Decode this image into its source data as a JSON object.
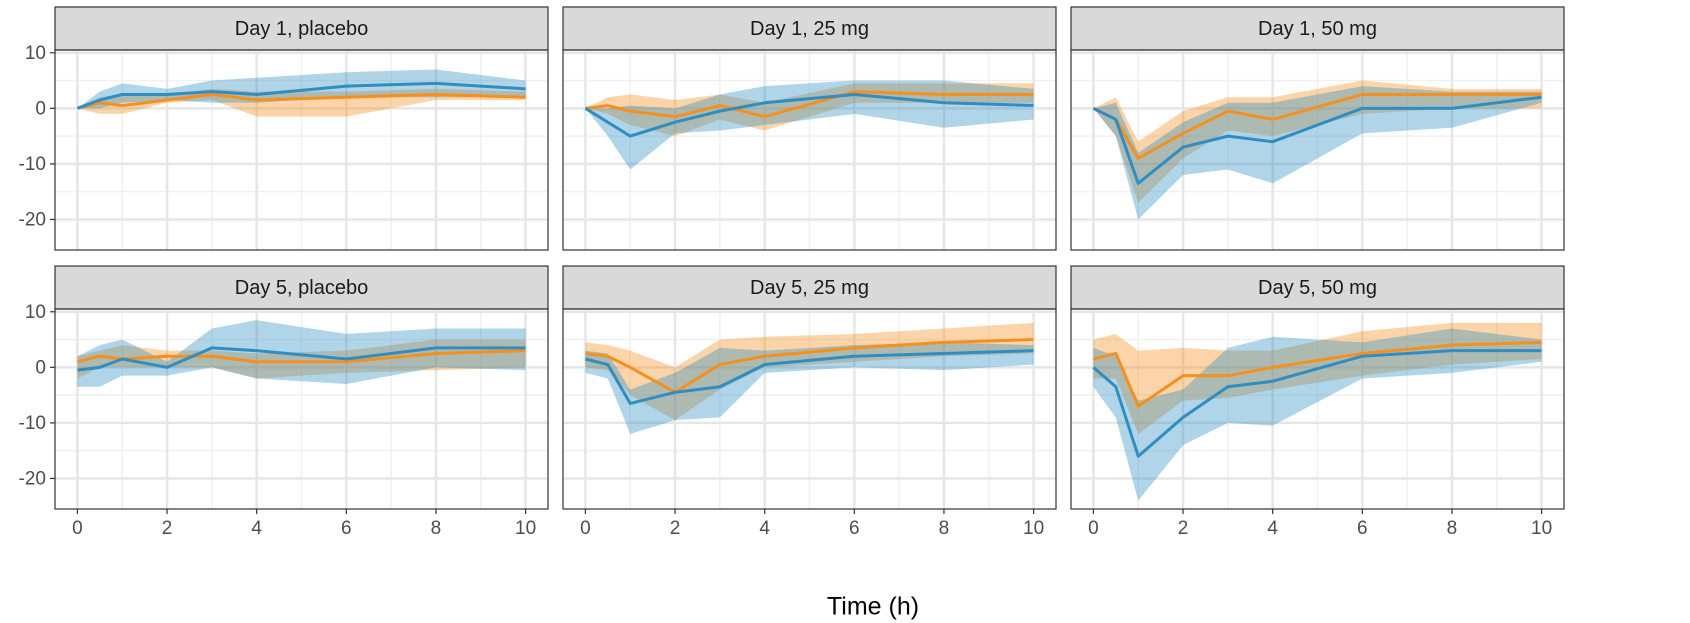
{
  "xlabel": "Time (h)",
  "chart_data": [
    {
      "type": "line",
      "title": "Day 1, placebo",
      "x": [
        0,
        0.5,
        1,
        2,
        3,
        4,
        6,
        8,
        10
      ],
      "xlim": [
        -0.5,
        10.5
      ],
      "ylim": [
        -25.5,
        10.5
      ],
      "xticks": [
        0,
        2,
        4,
        6,
        8,
        10
      ],
      "yticks": [
        -20,
        -10,
        0,
        10
      ],
      "grid": true,
      "series": [
        {
          "color": "#f5901e",
          "values": [
            0,
            1,
            0.5,
            1.5,
            2.5,
            1.5,
            2,
            2.5,
            2
          ],
          "lower": [
            0,
            -1,
            -1,
            1,
            1.5,
            -1.5,
            -1.5,
            1.5,
            1.5
          ],
          "upper": [
            0,
            2,
            2.5,
            2.5,
            3.5,
            3,
            3,
            3.5,
            3
          ]
        },
        {
          "color": "#2f8dc2",
          "values": [
            0,
            1.5,
            2.5,
            2.5,
            3,
            2.5,
            4,
            4.5,
            3.5
          ],
          "lower": [
            0,
            0,
            1,
            1.5,
            1,
            1,
            2,
            2,
            2
          ],
          "upper": [
            0,
            3,
            4.5,
            3.5,
            5,
            5.5,
            6.5,
            7,
            5
          ]
        }
      ]
    },
    {
      "type": "line",
      "title": "Day 1, 25 mg",
      "x": [
        0,
        0.5,
        1,
        2,
        3,
        4,
        6,
        8,
        10
      ],
      "xlim": [
        -0.5,
        10.5
      ],
      "ylim": [
        -25.5,
        10.5
      ],
      "xticks": [
        0,
        2,
        4,
        6,
        8,
        10
      ],
      "yticks": [
        -20,
        -10,
        0,
        10
      ],
      "grid": true,
      "series": [
        {
          "color": "#f5901e",
          "values": [
            0,
            0.5,
            -0.5,
            -1.5,
            0.5,
            -1.5,
            3,
            2.5,
            2.5
          ],
          "lower": [
            0,
            -1,
            -3,
            -5,
            -2,
            -4,
            1,
            1,
            1
          ],
          "upper": [
            0,
            2,
            2.5,
            1.5,
            2.5,
            1,
            4.5,
            4.5,
            4.5
          ]
        },
        {
          "color": "#2f8dc2",
          "values": [
            0,
            -2.5,
            -5,
            -2.5,
            -0.5,
            1,
            2.5,
            1,
            0.5
          ],
          "lower": [
            0,
            -5,
            -11,
            -4.5,
            -4,
            -3,
            -1,
            -3.5,
            -2
          ],
          "upper": [
            0,
            0,
            0.5,
            0,
            2.5,
            4,
            5,
            5,
            3.5
          ]
        }
      ]
    },
    {
      "type": "line",
      "title": "Day 1, 50 mg",
      "x": [
        0,
        0.5,
        1,
        2,
        3,
        4,
        6,
        8,
        10
      ],
      "xlim": [
        -0.5,
        10.5
      ],
      "ylim": [
        -25.5,
        10.5
      ],
      "xticks": [
        0,
        2,
        4,
        6,
        8,
        10
      ],
      "yticks": [
        -20,
        -10,
        0,
        10
      ],
      "grid": true,
      "series": [
        {
          "color": "#f5901e",
          "values": [
            0,
            -2,
            -9,
            -4.5,
            -0.5,
            -2,
            2.5,
            2.5,
            2.5
          ],
          "lower": [
            0,
            -5,
            -17,
            -9,
            -4,
            -5,
            -1,
            0,
            0
          ],
          "upper": [
            0,
            2,
            -6,
            -0.5,
            2,
            2,
            5,
            3.5,
            3.5
          ]
        },
        {
          "color": "#2f8dc2",
          "values": [
            0,
            -2,
            -13.5,
            -7,
            -5,
            -6,
            0,
            0,
            2
          ],
          "lower": [
            0,
            -5,
            -20,
            -12,
            -11,
            -13.5,
            -4.5,
            -3.5,
            1
          ],
          "upper": [
            0,
            1,
            -8,
            -2.5,
            1,
            1,
            4,
            3,
            3
          ]
        }
      ]
    },
    {
      "type": "line",
      "title": "Day 5, placebo",
      "x": [
        0,
        0.5,
        1,
        2,
        3,
        4,
        6,
        8,
        10
      ],
      "xlim": [
        -0.5,
        10.5
      ],
      "ylim": [
        -25.5,
        10.5
      ],
      "xticks": [
        0,
        2,
        4,
        6,
        8,
        10
      ],
      "yticks": [
        -20,
        -10,
        0,
        10
      ],
      "grid": true,
      "series": [
        {
          "color": "#f5901e",
          "values": [
            1,
            2,
            1.5,
            2,
            2,
            1,
            1,
            2.5,
            3
          ],
          "lower": [
            -2,
            0,
            0,
            0,
            0,
            -2,
            -1,
            -0.5,
            0
          ],
          "upper": [
            2,
            3,
            4,
            3,
            3,
            2.5,
            3,
            5,
            5
          ]
        },
        {
          "color": "#2f8dc2",
          "values": [
            -0.5,
            0,
            1.5,
            0,
            3.5,
            3,
            1.5,
            3.5,
            3.5
          ],
          "lower": [
            -3.5,
            -3.5,
            -1.5,
            -1.5,
            0,
            -2,
            -3,
            0,
            -0.5
          ],
          "upper": [
            2,
            4,
            5,
            1,
            7,
            8.5,
            6,
            7,
            7
          ]
        }
      ]
    },
    {
      "type": "line",
      "title": "Day 5, 25 mg",
      "x": [
        0,
        0.5,
        1,
        2,
        3,
        4,
        6,
        8,
        10
      ],
      "xlim": [
        -0.5,
        10.5
      ],
      "ylim": [
        -25.5,
        10.5
      ],
      "xticks": [
        0,
        2,
        4,
        6,
        8,
        10
      ],
      "yticks": [
        -20,
        -10,
        0,
        10
      ],
      "grid": true,
      "series": [
        {
          "color": "#f5901e",
          "values": [
            2.5,
            2,
            0,
            -4.5,
            0.5,
            2,
            3.5,
            4.5,
            5
          ],
          "lower": [
            0,
            -0.5,
            -5,
            -9.5,
            -4,
            0,
            1,
            2,
            2.5
          ],
          "upper": [
            4.5,
            4,
            3,
            0,
            5,
            5.5,
            6,
            7,
            8
          ]
        },
        {
          "color": "#2f8dc2",
          "values": [
            1.5,
            0.5,
            -6.5,
            -4.5,
            -3.5,
            0.5,
            2,
            2.5,
            3
          ],
          "lower": [
            -1,
            -2,
            -12,
            -9.5,
            -9,
            -1,
            0,
            -0.5,
            0.5
          ],
          "upper": [
            3,
            2.5,
            -4,
            -1,
            3.5,
            3,
            4,
            4.5,
            4
          ]
        }
      ]
    },
    {
      "type": "line",
      "title": "Day 5, 50 mg",
      "x": [
        0,
        0.5,
        1,
        2,
        3,
        4,
        6,
        8,
        10
      ],
      "xlim": [
        -0.5,
        10.5
      ],
      "ylim": [
        -25.5,
        10.5
      ],
      "xticks": [
        0,
        2,
        4,
        6,
        8,
        10
      ],
      "yticks": [
        -20,
        -10,
        0,
        10
      ],
      "grid": true,
      "series": [
        {
          "color": "#f5901e",
          "values": [
            1.5,
            2.5,
            -7,
            -1.5,
            -1.5,
            0,
            2.5,
            4,
            4.5
          ],
          "lower": [
            -2,
            -2,
            -12,
            -6,
            -5.5,
            -4,
            -1.5,
            0.5,
            1.5
          ],
          "upper": [
            5,
            6,
            3,
            3.5,
            3,
            3,
            6.5,
            8,
            8
          ]
        },
        {
          "color": "#2f8dc2",
          "values": [
            0,
            -3.5,
            -16,
            -9,
            -3.5,
            -2.5,
            2,
            3,
            3
          ],
          "lower": [
            -3.5,
            -9,
            -24,
            -14,
            -10,
            -10.5,
            -2,
            -1,
            1
          ],
          "upper": [
            3.5,
            2,
            -6,
            -4,
            3.5,
            5.5,
            4.5,
            7,
            5
          ]
        }
      ]
    }
  ]
}
